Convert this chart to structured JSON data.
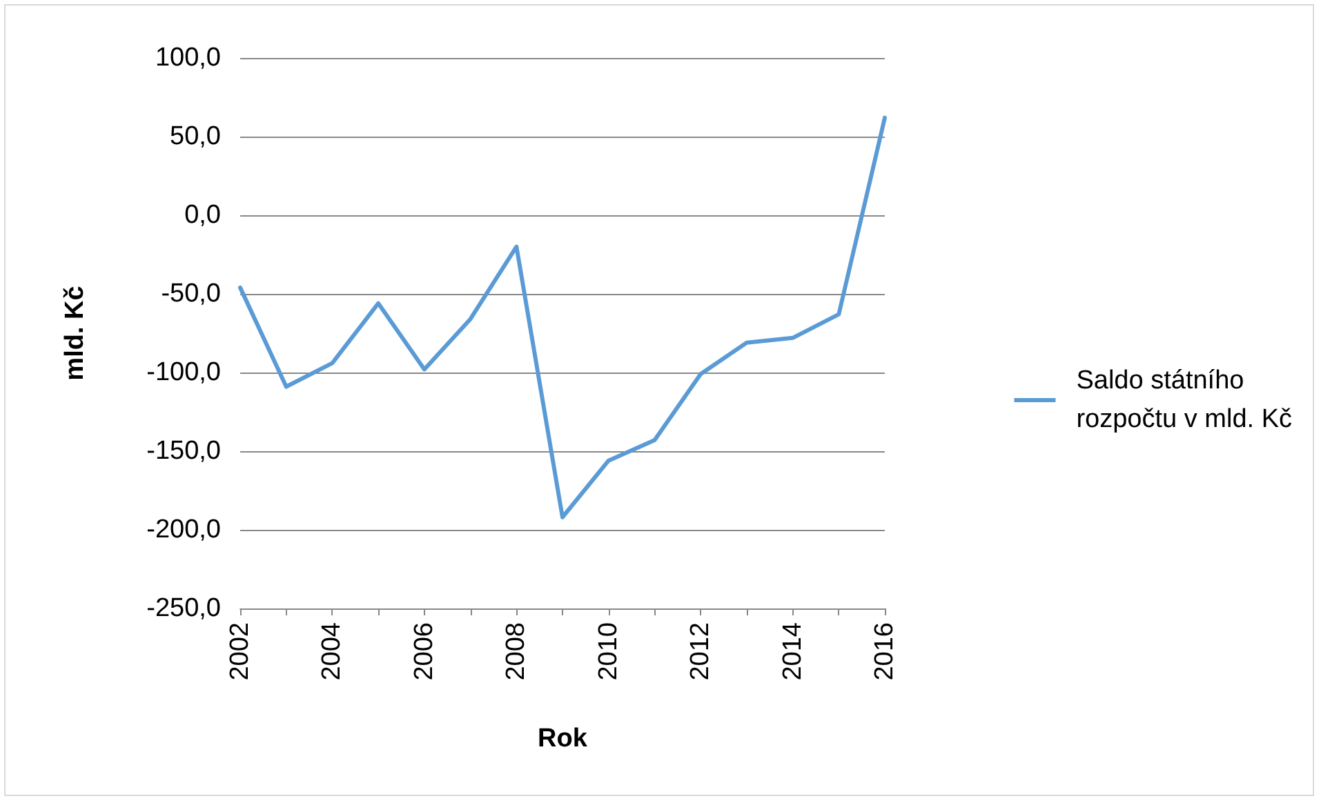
{
  "chart_data": {
    "type": "line",
    "xlabel": "Rok",
    "ylabel": "mld. Kč",
    "categories": [
      "2002",
      null,
      "2004",
      null,
      "2006",
      null,
      "2008",
      null,
      "2010",
      null,
      "2012",
      null,
      "2014",
      null,
      "2016"
    ],
    "series": [
      {
        "name": "Saldo státního rozpočtu v mld. Kč",
        "color": "#5b9bd5",
        "values": [
          -46,
          -109,
          -94,
          -56,
          -98,
          -66,
          -20,
          -192,
          -156,
          -143,
          -101,
          -81,
          -78,
          -63,
          62
        ]
      }
    ],
    "ylim": [
      -250,
      100
    ],
    "yticks": [
      {
        "value": -250,
        "label": "-250,0"
      },
      {
        "value": -200,
        "label": "-200,0"
      },
      {
        "value": -150,
        "label": "-150,0"
      },
      {
        "value": -100,
        "label": "-100,0"
      },
      {
        "value": -50,
        "label": "-50,0"
      },
      {
        "value": 0,
        "label": "0,0"
      },
      {
        "value": 50,
        "label": "50,0"
      },
      {
        "value": 100,
        "label": "100,0"
      }
    ],
    "grid": "y",
    "legend": "right",
    "marker": "none",
    "line_style": "solid"
  }
}
